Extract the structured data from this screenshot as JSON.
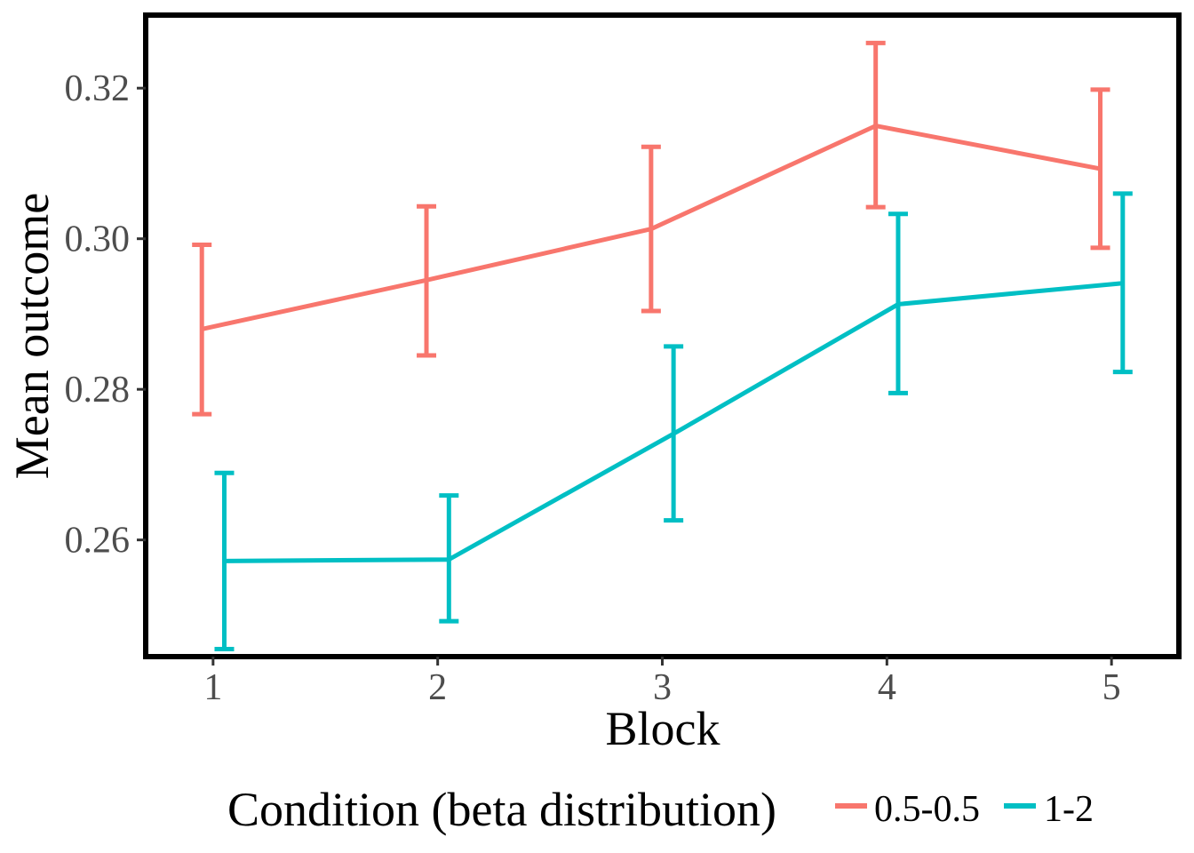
{
  "chart_data": {
    "type": "line",
    "title": "",
    "xlabel": "Block",
    "ylabel": "Mean outcome",
    "x": [
      1,
      2,
      3,
      4,
      5
    ],
    "xticks": [
      "1",
      "2",
      "3",
      "4",
      "5"
    ],
    "yticks": [
      "0.26",
      "0.28",
      "0.30",
      "0.32"
    ],
    "ytick_values": [
      0.26,
      0.28,
      0.3,
      0.32
    ],
    "xlim": [
      0.7,
      5.3
    ],
    "ylim": [
      0.2445,
      0.3297
    ],
    "grid": false,
    "legend": {
      "title": "Condition (beta distribution)",
      "position": "bottom"
    },
    "series": [
      {
        "name": "0.5-0.5",
        "color": "#F8766D",
        "x": [
          0.95,
          1.95,
          2.95,
          3.95,
          4.95
        ],
        "values": [
          0.288,
          0.2945,
          0.3013,
          0.315,
          0.3093
        ],
        "lower": [
          0.2767,
          0.2845,
          0.2904,
          0.3042,
          0.2988
        ],
        "upper": [
          0.2992,
          0.3043,
          0.3122,
          0.326,
          0.3198
        ]
      },
      {
        "name": "1-2",
        "color": "#00BFC4",
        "x": [
          1.05,
          2.05,
          3.05,
          4.05,
          5.05
        ],
        "values": [
          0.2572,
          0.2574,
          0.2741,
          0.2913,
          0.2941
        ],
        "lower": [
          0.2455,
          0.2492,
          0.2626,
          0.2795,
          0.2823
        ],
        "upper": [
          0.2689,
          0.2659,
          0.2857,
          0.3033,
          0.306
        ]
      }
    ]
  }
}
